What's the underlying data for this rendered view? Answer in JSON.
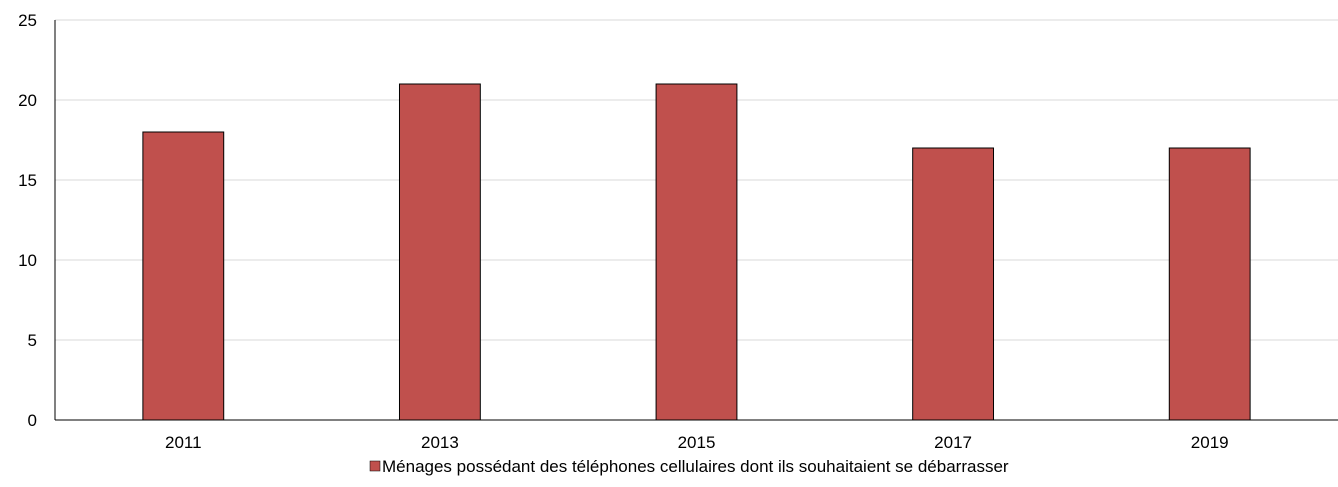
{
  "chart_data": {
    "type": "bar",
    "categories": [
      "2011",
      "2013",
      "2015",
      "2017",
      "2019"
    ],
    "series": [
      {
        "name": "Ménages possédant des téléphones cellulaires dont ils souhaitaient se débarrasser",
        "values": [
          18,
          21,
          21,
          17,
          17
        ],
        "color": "#c0504d"
      }
    ],
    "ylim": [
      0,
      25
    ],
    "yticks": [
      0,
      5,
      10,
      15,
      20,
      25
    ],
    "grid": true,
    "legend_position": "bottom-center",
    "gridline_color": "#d9d9d9",
    "axis_color": "#000000"
  }
}
